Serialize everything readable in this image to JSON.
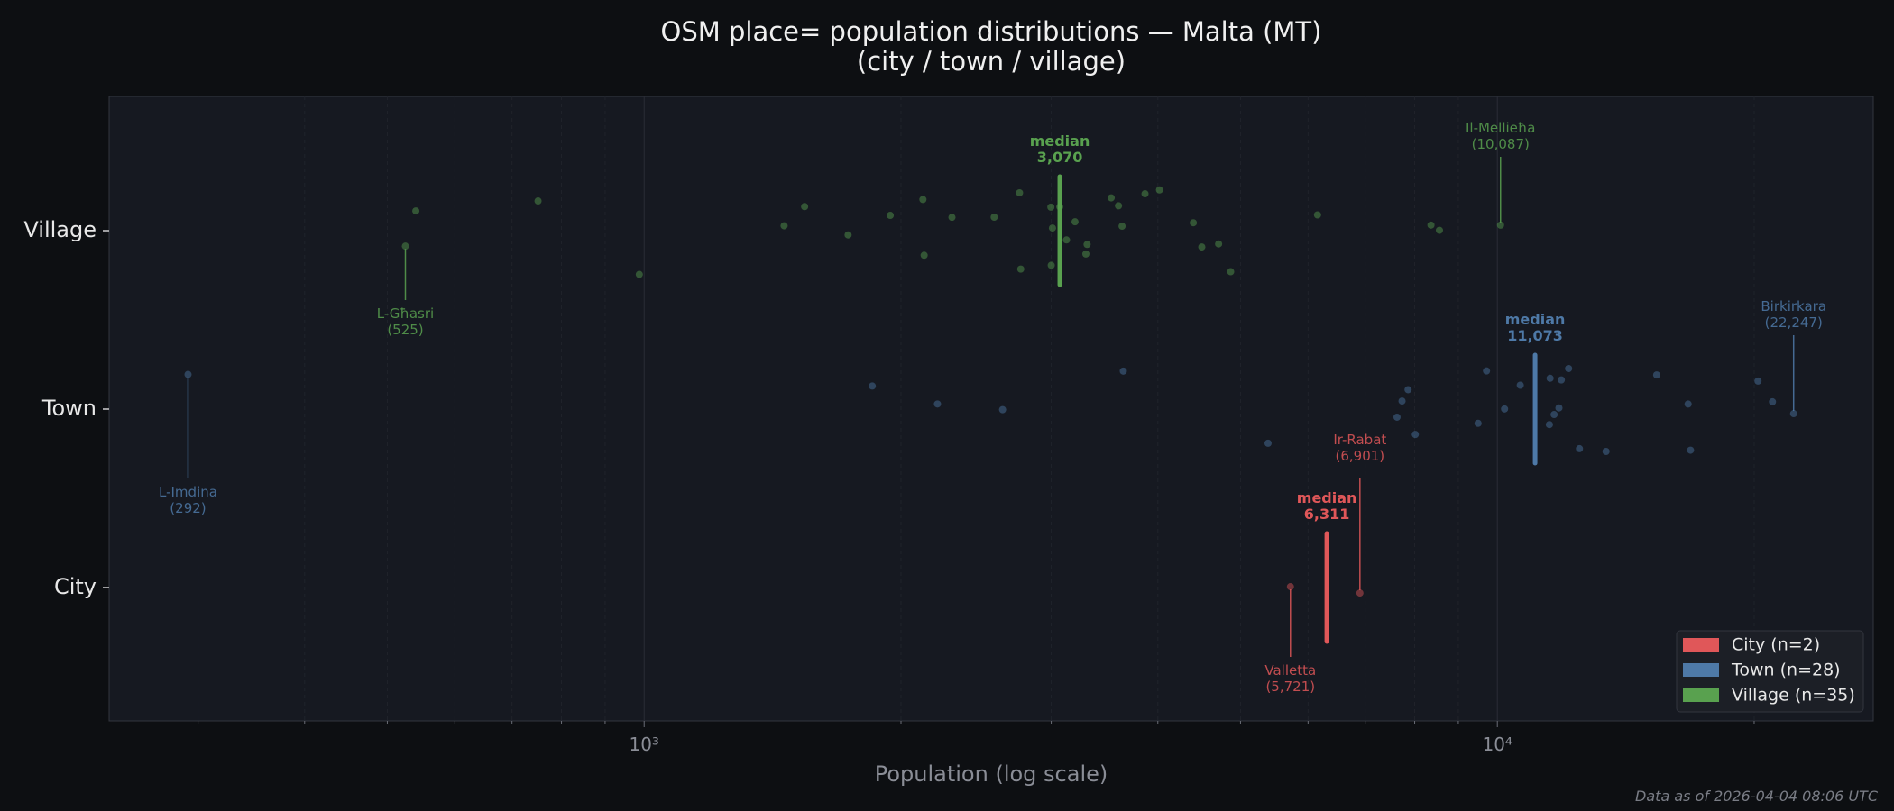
{
  "chart_data": {
    "type": "scatter",
    "title": "OSM place= population distributions — Malta (MT)",
    "subtitle": "(city / town / village)",
    "xlabel": "Population (log scale)",
    "xscale": "log",
    "xlim": [
      236,
      27580
    ],
    "xticks": [
      {
        "value": 1000,
        "label": "10³"
      },
      {
        "value": 10000,
        "label": "10⁴"
      }
    ],
    "categories": [
      "City",
      "Town",
      "Village"
    ],
    "grid": true,
    "legend_position": "bottom-right",
    "series": [
      {
        "name": "City",
        "legend": "City  (n=2)",
        "color": "#e05759",
        "values": [
          5721,
          6901
        ],
        "median": 6311,
        "median_label": "median",
        "median_value": "6,311",
        "min": {
          "name": "Valletta",
          "value": 5721,
          "label": "(5,721)"
        },
        "max": {
          "name": "Ir-Rabat",
          "value": 6901,
          "label": "(6,901)"
        }
      },
      {
        "name": "Town",
        "legend": "Town  (n=28)",
        "color": "#4e79a7",
        "values": [
          292,
          1851,
          2207,
          2631,
          3644,
          5386,
          7628,
          7732,
          7859,
          8014,
          9493,
          9712,
          10197,
          10638,
          11508,
          11530,
          11656,
          11809,
          11885,
          12120,
          12481,
          13409,
          15373,
          16734,
          16843,
          20208,
          21012,
          22247
        ],
        "median": 11073,
        "median_label": "median",
        "median_value": "11,073",
        "min": {
          "name": "L-Imdina",
          "value": 292,
          "label": "(292)"
        },
        "max": {
          "name": "Birkirkara",
          "value": 22247,
          "label": "(22,247)"
        }
      },
      {
        "name": "Village",
        "legend": "Village  (n=35)",
        "color": "#59a14f",
        "values": [
          525,
          540,
          751,
          987,
          1459,
          1542,
          1734,
          1943,
          2122,
          2129,
          2295,
          2572,
          2754,
          2763,
          2997,
          3000,
          3010,
          3070,
          3126,
          3199,
          3294,
          3305,
          3527,
          3597,
          3632,
          3864,
          4018,
          4402,
          4504,
          4713,
          4869,
          6155,
          8360,
          8553,
          10087
        ],
        "median": 3070,
        "median_label": "median",
        "median_value": "3,070",
        "min": {
          "name": "L-Għasri",
          "value": 525,
          "label": "(525)"
        },
        "max": {
          "name": "Il-Mellieħa",
          "value": 10087,
          "label": "(10,087)"
        }
      }
    ]
  },
  "footer": "Data as of 2026-04-04 08:06 UTC",
  "colors": {
    "background": "#0d0f12",
    "plot_background": "#161921"
  }
}
